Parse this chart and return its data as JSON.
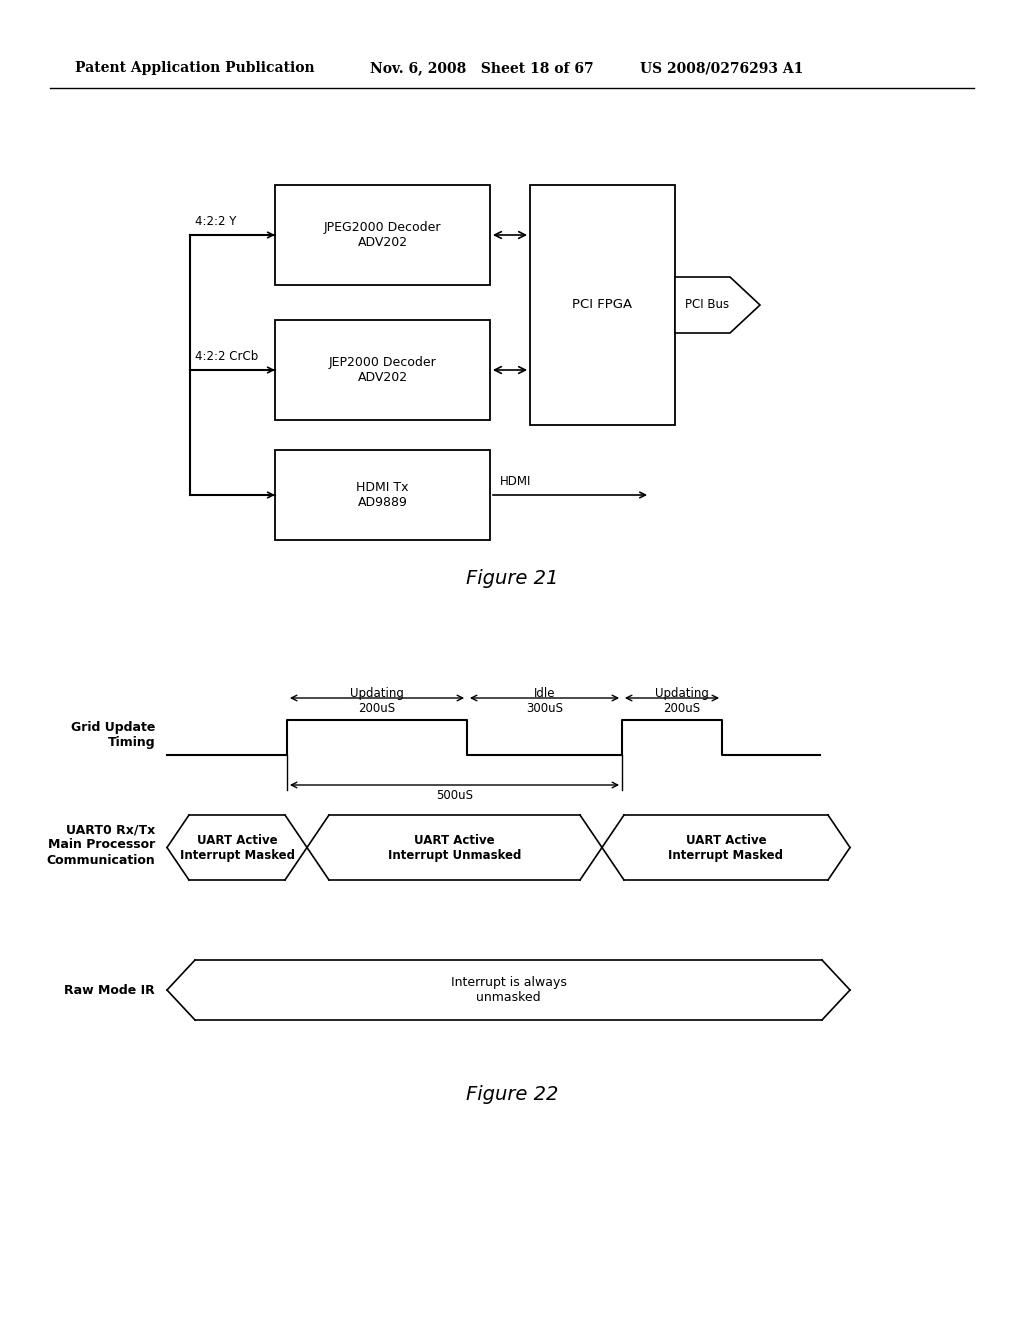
{
  "bg_color": "#ffffff",
  "header_left": "Patent Application Publication",
  "header_mid": "Nov. 6, 2008   Sheet 18 of 67",
  "header_right": "US 2008/0276293 A1",
  "fig21_title": "Figure 21",
  "fig22_title": "Figure 22",
  "jpeg_label": "JPEG2000 Decoder\nADV202",
  "jep_label": "JEP2000 Decoder\nADV202",
  "hdmi_box_label": "HDMI Tx\nAD9889",
  "pci_label": "PCI FPGA",
  "label_422y": "4:2:2 Y",
  "label_422crcb": "4:2:2 CrCb",
  "label_hdmi_out": "HDMI",
  "label_pcibus": "PCI Bus",
  "timing_label": "Grid Update\nTiming",
  "uart_label": "UART0 Rx/Tx\nMain Processor\nCommunication",
  "ir_label": "Raw Mode IR",
  "updating1_label": "Updating\n200uS",
  "idle_label": "Idle\n300uS",
  "updating2_label": "Updating\n200uS",
  "span_label": "500uS",
  "uart1_label": "UART Active\nInterrupt Masked",
  "uart2_label": "UART Active\nInterrupt Unmasked",
  "uart3_label": "UART Active\nInterrupt Masked",
  "ir_content_label": "Interrupt is always\nunmasked"
}
